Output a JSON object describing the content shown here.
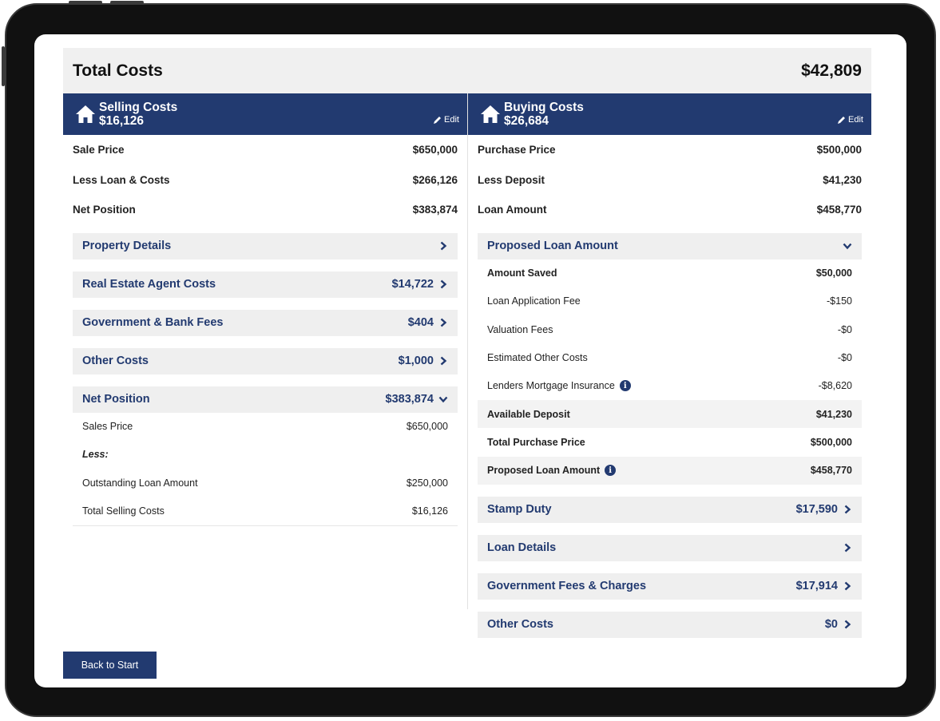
{
  "total": {
    "label": "Total Costs",
    "value": "$42,809"
  },
  "selling": {
    "title": "Selling Costs",
    "amount": "$16,126",
    "edit_label": "Edit",
    "rows": [
      {
        "label": "Sale Price",
        "value": "$650,000"
      },
      {
        "label": "Less Loan & Costs",
        "value": "$266,126"
      },
      {
        "label": "Net Position",
        "value": "$383,874"
      }
    ],
    "sections": [
      {
        "label": "Property Details",
        "value": ""
      },
      {
        "label": "Real Estate Agent Costs",
        "value": "$14,722"
      },
      {
        "label": "Government & Bank Fees",
        "value": "$404"
      },
      {
        "label": "Other Costs",
        "value": "$1,000"
      }
    ],
    "net_position": {
      "label": "Net Position",
      "value": "$383,874",
      "items": [
        {
          "label": "Sales Price",
          "value": "$650,000"
        },
        {
          "label": "Less:",
          "value": ""
        },
        {
          "label": "Outstanding Loan Amount",
          "value": "$250,000"
        },
        {
          "label": "Total Selling Costs",
          "value": "$16,126"
        }
      ]
    }
  },
  "buying": {
    "title": "Buying Costs",
    "amount": "$26,684",
    "edit_label": "Edit",
    "rows": [
      {
        "label": "Purchase Price",
        "value": "$500,000"
      },
      {
        "label": "Less Deposit",
        "value": "$41,230"
      },
      {
        "label": "Loan Amount",
        "value": "$458,770"
      }
    ],
    "proposed": {
      "label": "Proposed Loan Amount",
      "items": [
        {
          "label": "Amount Saved",
          "value": "$50,000"
        },
        {
          "label": "Loan Application Fee",
          "value": "-$150"
        },
        {
          "label": "Valuation Fees",
          "value": "-$0"
        },
        {
          "label": "Estimated Other Costs",
          "value": "-$0"
        },
        {
          "label": "Lenders Mortgage Insurance",
          "value": "-$8,620"
        },
        {
          "label": "Available Deposit",
          "value": "$41,230"
        },
        {
          "label": "Total Purchase Price",
          "value": "$500,000"
        },
        {
          "label": "Proposed Loan Amount",
          "value": "$458,770"
        }
      ]
    },
    "sections": [
      {
        "label": "Stamp Duty",
        "value": "$17,590"
      },
      {
        "label": "Loan Details",
        "value": ""
      },
      {
        "label": "Government Fees & Charges",
        "value": "$17,914"
      },
      {
        "label": "Other Costs",
        "value": "$0"
      }
    ]
  },
  "back_label": "Back to Start",
  "info_glyph": "i",
  "colors": {
    "navy": "#223a70",
    "bar": "#efefef"
  }
}
